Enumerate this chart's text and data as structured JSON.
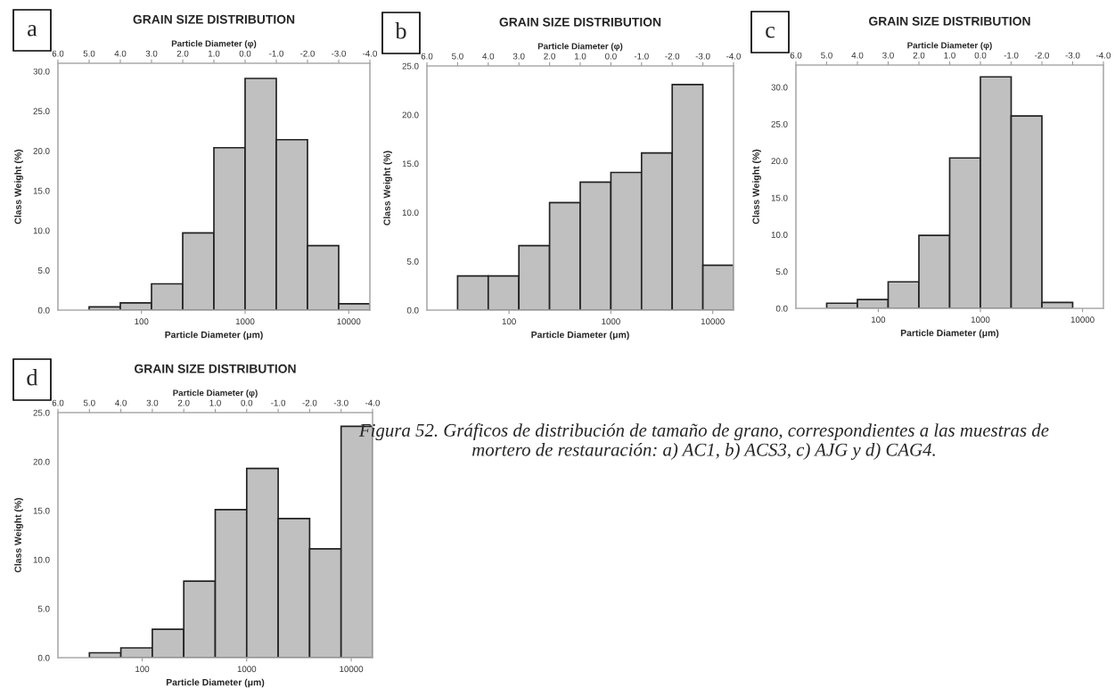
{
  "chart_data": [
    {
      "type": "histogram",
      "title": "GRAIN SIZE DISTRIBUTION",
      "xlabel": "Particle Diameter (μm)",
      "x2label": "Particle Diameter (φ)",
      "ylabel": "Class Weight (%)",
      "annotations": [
        "a"
      ],
      "color": "#c0c0c0",
      "log": "x",
      "bins": [
        31.25,
        62.5,
        125,
        250,
        500,
        1000,
        2000,
        4000,
        8000,
        16000
      ],
      "values": [
        0.4,
        0.9,
        3.3,
        9.7,
        20.4,
        29.1,
        21.4,
        8.1,
        0.8
      ],
      "xlim": [
        15.625,
        16000
      ],
      "xticks": [
        100,
        1000,
        10000
      ],
      "ylim": [
        0,
        31
      ],
      "yticks": [
        {
          "value": 0,
          "label": "0.0"
        },
        {
          "value": 5,
          "label": "5.0"
        },
        {
          "value": 10,
          "label": "10.0"
        },
        {
          "value": 15,
          "label": "15.0"
        },
        {
          "value": 20,
          "label": "20.0"
        },
        {
          "value": 25,
          "label": "25.0"
        },
        {
          "value": 30,
          "label": "30.0"
        }
      ],
      "x2lim": [
        6,
        -4
      ],
      "x2ticks": [
        {
          "value": 6,
          "label": "6.0"
        },
        {
          "value": 5,
          "label": "5.0"
        },
        {
          "value": 4,
          "label": "4.0"
        },
        {
          "value": 3,
          "label": "3.0"
        },
        {
          "value": 2,
          "label": "2.0"
        },
        {
          "value": 1,
          "label": "1.0"
        },
        {
          "value": 0,
          "label": "0.0"
        },
        {
          "value": -1,
          "label": "-1.0"
        },
        {
          "value": -2,
          "label": "-2.0"
        },
        {
          "value": -3,
          "label": "-3.0"
        },
        {
          "value": -4,
          "label": "-4.0"
        }
      ],
      "grid": false,
      "legend": false
    },
    {
      "type": "histogram",
      "title": "GRAIN SIZE DISTRIBUTION",
      "xlabel": "Particle Diameter (μm)",
      "x2label": "Particle Diameter (φ)",
      "ylabel": "Class Weight (%)",
      "annotations": [
        "b"
      ],
      "color": "#c0c0c0",
      "log": "x",
      "bins": [
        31.25,
        62.5,
        125,
        250,
        500,
        1000,
        2000,
        4000,
        8000,
        16000
      ],
      "values": [
        3.5,
        3.5,
        6.6,
        11.0,
        13.1,
        14.1,
        16.1,
        23.1,
        4.6
      ],
      "xlim": [
        15.625,
        16000
      ],
      "xticks": [
        100,
        1000,
        10000
      ],
      "ylim": [
        0,
        25
      ],
      "yticks": [
        {
          "value": 0,
          "label": "0.0"
        },
        {
          "value": 5,
          "label": "5.0"
        },
        {
          "value": 10,
          "label": "10.0"
        },
        {
          "value": 15,
          "label": "15.0"
        },
        {
          "value": 20,
          "label": "20.0"
        },
        {
          "value": 25,
          "label": "25.0"
        }
      ],
      "x2lim": [
        6,
        -4
      ],
      "x2ticks": [
        {
          "value": 6,
          "label": "6.0"
        },
        {
          "value": 5,
          "label": "5.0"
        },
        {
          "value": 4,
          "label": "4.0"
        },
        {
          "value": 3,
          "label": "3.0"
        },
        {
          "value": 2,
          "label": "2.0"
        },
        {
          "value": 1,
          "label": "1.0"
        },
        {
          "value": 0,
          "label": "0.0"
        },
        {
          "value": -1,
          "label": "-1.0"
        },
        {
          "value": -2,
          "label": "-2.0"
        },
        {
          "value": -3,
          "label": "-3.0"
        },
        {
          "value": -4,
          "label": "-4.0"
        }
      ],
      "grid": false,
      "legend": false
    },
    {
      "type": "histogram",
      "title": "GRAIN SIZE DISTRIBUTION",
      "xlabel": "Particle Diameter (μm)",
      "x2label": "Particle Diameter (φ)",
      "ylabel": "Class Weight (%)",
      "annotations": [
        "c"
      ],
      "color": "#c0c0c0",
      "log": "x",
      "bins": [
        31.25,
        62.5,
        125,
        250,
        500,
        1000,
        2000,
        4000,
        8000
      ],
      "values": [
        0.7,
        1.2,
        3.6,
        9.9,
        20.4,
        31.4,
        26.1,
        0.8
      ],
      "xlim": [
        15.625,
        16000
      ],
      "xticks": [
        100,
        1000,
        10000
      ],
      "ylim": [
        0,
        33
      ],
      "yticks": [
        {
          "value": 0,
          "label": "0.0"
        },
        {
          "value": 5,
          "label": "5.0"
        },
        {
          "value": 10,
          "label": "10.0"
        },
        {
          "value": 15,
          "label": "15.0"
        },
        {
          "value": 20,
          "label": "20.0"
        },
        {
          "value": 25,
          "label": "25.0"
        },
        {
          "value": 30,
          "label": "30.0"
        }
      ],
      "x2lim": [
        6,
        -4
      ],
      "x2ticks": [
        {
          "value": 6,
          "label": "6.0"
        },
        {
          "value": 5,
          "label": "5.0"
        },
        {
          "value": 4,
          "label": "4.0"
        },
        {
          "value": 3,
          "label": "3.0"
        },
        {
          "value": 2,
          "label": "2.0"
        },
        {
          "value": 1,
          "label": "1.0"
        },
        {
          "value": 0,
          "label": "0.0"
        },
        {
          "value": -1,
          "label": "-1.0"
        },
        {
          "value": -2,
          "label": "-2.0"
        },
        {
          "value": -3,
          "label": "-3.0"
        },
        {
          "value": -4,
          "label": "-4.0"
        }
      ],
      "grid": false,
      "legend": false
    },
    {
      "type": "histogram",
      "title": "GRAIN SIZE DISTRIBUTION",
      "xlabel": "Particle Diameter (μm)",
      "x2label": "Particle Diameter (φ)",
      "ylabel": "Class Weight (%)",
      "annotations": [
        "d",
        "Figura 52. Gráficos de distribución de tamaño de grano, correspondientes a las muestras de mortero de restauración: a) AC1, b) ACS3, c) AJG y d) CAG4."
      ],
      "color": "#c0c0c0",
      "log": "x",
      "bins": [
        31.25,
        62.5,
        125,
        250,
        500,
        1000,
        2000,
        4000,
        8000,
        16000
      ],
      "values": [
        0.5,
        1.0,
        2.9,
        7.8,
        15.1,
        19.3,
        14.2,
        11.1,
        23.6
      ],
      "xlim": [
        15.625,
        16000
      ],
      "xticks": [
        100,
        1000,
        10000
      ],
      "ylim": [
        0,
        25
      ],
      "yticks": [
        {
          "value": 0,
          "label": "0.0"
        },
        {
          "value": 5,
          "label": "5.0"
        },
        {
          "value": 10,
          "label": "10.0"
        },
        {
          "value": 15,
          "label": "15.0"
        },
        {
          "value": 20,
          "label": "20.0"
        },
        {
          "value": 25,
          "label": "25.0"
        }
      ],
      "x2lim": [
        6,
        -4
      ],
      "x2ticks": [
        {
          "value": 6,
          "label": "6.0"
        },
        {
          "value": 5,
          "label": "5.0"
        },
        {
          "value": 4,
          "label": "4.0"
        },
        {
          "value": 3,
          "label": "3.0"
        },
        {
          "value": 2,
          "label": "2.0"
        },
        {
          "value": 1,
          "label": "1.0"
        },
        {
          "value": 0,
          "label": "0.0"
        },
        {
          "value": -1,
          "label": "-1.0"
        },
        {
          "value": -2,
          "label": "-2.0"
        },
        {
          "value": -3,
          "label": "-3.0"
        },
        {
          "value": -4,
          "label": "-4.0"
        }
      ],
      "grid": false,
      "legend": false
    }
  ]
}
